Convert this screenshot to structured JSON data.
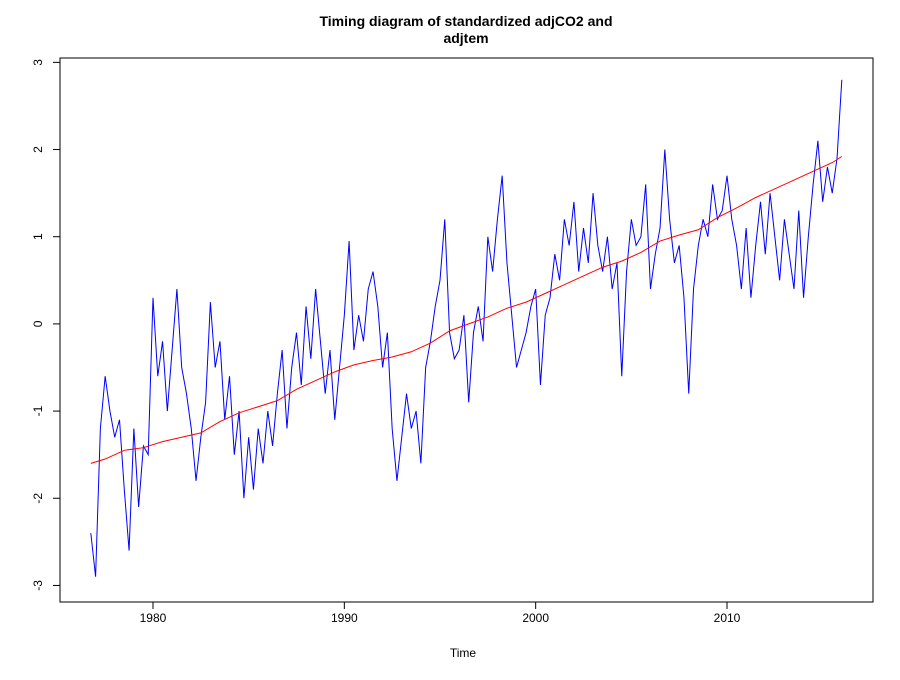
{
  "chart_data": {
    "type": "line",
    "title": [
      "Timing diagram of standardized adjCO2 and",
      "adjtem"
    ],
    "x_label": "Time",
    "xlim": [
      1975.14,
      2017.63
    ],
    "xticks": [
      1980,
      1990,
      2000,
      2010
    ],
    "ylim": [
      -3.19,
      3.05
    ],
    "yticks": [
      -3,
      -2,
      -1,
      0,
      1,
      2,
      3
    ],
    "series": [
      {
        "color": "#0000ff",
        "x": [
          1976.75,
          1977,
          1977.25,
          1977.5,
          1977.75,
          1978,
          1978.25,
          1978.5,
          1978.75,
          1979,
          1979.25,
          1979.5,
          1979.75,
          1980,
          1980.25,
          1980.5,
          1980.75,
          1981,
          1981.25,
          1981.5,
          1981.75,
          1982,
          1982.25,
          1982.5,
          1982.75,
          1983,
          1983.25,
          1983.5,
          1983.75,
          1984,
          1984.25,
          1984.5,
          1984.75,
          1985,
          1985.25,
          1985.5,
          1985.75,
          1986,
          1986.25,
          1986.5,
          1986.75,
          1987,
          1987.25,
          1987.5,
          1987.75,
          1988,
          1988.25,
          1988.5,
          1988.75,
          1989,
          1989.25,
          1989.5,
          1989.75,
          1990,
          1990.25,
          1990.5,
          1990.75,
          1991,
          1991.25,
          1991.5,
          1991.75,
          1992,
          1992.25,
          1992.5,
          1992.75,
          1993,
          1993.25,
          1993.5,
          1993.75,
          1994,
          1994.25,
          1994.5,
          1994.75,
          1995,
          1995.25,
          1995.5,
          1995.75,
          1996,
          1996.25,
          1996.5,
          1996.75,
          1997,
          1997.25,
          1997.5,
          1997.75,
          1998,
          1998.25,
          1998.5,
          1998.75,
          1999,
          1999.25,
          1999.5,
          1999.75,
          2000,
          2000.25,
          2000.5,
          2000.75,
          2001,
          2001.25,
          2001.5,
          2001.75,
          2002,
          2002.25,
          2002.5,
          2002.75,
          2003,
          2003.25,
          2003.5,
          2003.75,
          2004,
          2004.25,
          2004.5,
          2004.75,
          2005,
          2005.25,
          2005.5,
          2005.75,
          2006,
          2006.25,
          2006.5,
          2006.75,
          2007,
          2007.25,
          2007.5,
          2007.75,
          2008,
          2008.25,
          2008.5,
          2008.75,
          2009,
          2009.25,
          2009.5,
          2009.75,
          2010,
          2010.25,
          2010.5,
          2010.75,
          2011,
          2011.25,
          2011.5,
          2011.75,
          2012,
          2012.25,
          2012.5,
          2012.75,
          2013,
          2013.25,
          2013.5,
          2013.75,
          2014,
          2014.25,
          2014.5,
          2014.75,
          2015,
          2015.25,
          2015.5,
          2015.75,
          2016
        ],
        "values": [
          -2.4,
          -2.9,
          -1.2,
          -0.6,
          -1.0,
          -1.3,
          -1.1,
          -1.9,
          -2.6,
          -1.2,
          -2.1,
          -1.4,
          -1.5,
          0.3,
          -0.6,
          -0.2,
          -1.0,
          -0.3,
          0.4,
          -0.5,
          -0.8,
          -1.2,
          -1.8,
          -1.3,
          -0.9,
          0.25,
          -0.5,
          -0.2,
          -1.1,
          -0.6,
          -1.5,
          -1.0,
          -2.0,
          -1.3,
          -1.9,
          -1.2,
          -1.6,
          -1.0,
          -1.4,
          -0.8,
          -0.3,
          -1.2,
          -0.5,
          -0.1,
          -0.7,
          0.2,
          -0.4,
          0.4,
          -0.2,
          -0.8,
          -0.3,
          -1.1,
          -0.5,
          0.1,
          0.95,
          -0.3,
          0.1,
          -0.2,
          0.4,
          0.6,
          0.2,
          -0.5,
          -0.1,
          -1.2,
          -1.8,
          -1.3,
          -0.8,
          -1.2,
          -1.0,
          -1.6,
          -0.5,
          -0.2,
          0.2,
          0.5,
          1.2,
          -0.1,
          -0.4,
          -0.3,
          0.1,
          -0.9,
          -0.1,
          0.2,
          -0.2,
          1.0,
          0.6,
          1.2,
          1.7,
          0.7,
          0.1,
          -0.5,
          -0.3,
          -0.1,
          0.2,
          0.4,
          -0.7,
          0.1,
          0.3,
          0.8,
          0.5,
          1.2,
          0.9,
          1.4,
          0.6,
          1.1,
          0.7,
          1.5,
          0.9,
          0.6,
          1.0,
          0.4,
          0.7,
          -0.6,
          0.6,
          1.2,
          0.9,
          1.0,
          1.6,
          0.4,
          0.8,
          1.1,
          2.0,
          1.2,
          0.7,
          0.9,
          0.3,
          -0.8,
          0.4,
          0.9,
          1.2,
          1.0,
          1.6,
          1.2,
          1.3,
          1.7,
          1.2,
          0.9,
          0.4,
          1.1,
          0.3,
          0.9,
          1.4,
          0.8,
          1.5,
          1.0,
          0.5,
          1.2,
          0.8,
          0.4,
          1.3,
          0.3,
          1.0,
          1.6,
          2.1,
          1.4,
          1.8,
          1.5,
          1.9,
          2.8
        ]
      },
      {
        "color": "#ff0000",
        "x": [
          1976.75,
          1977.5,
          1978.5,
          1979.5,
          1980.5,
          1981.5,
          1982.5,
          1983.5,
          1984.5,
          1985.5,
          1986.5,
          1987.5,
          1988.5,
          1989.5,
          1990.5,
          1991.5,
          1992.5,
          1993.5,
          1994.5,
          1995.5,
          1996.5,
          1997.5,
          1998.5,
          1999.5,
          2000.5,
          2001.5,
          2002.5,
          2003.5,
          2004.5,
          2005.5,
          2006.5,
          2007.5,
          2008.5,
          2009.5,
          2010.5,
          2011.5,
          2012.5,
          2013.5,
          2014.5,
          2015.5,
          2016
        ],
        "values": [
          -1.6,
          -1.55,
          -1.45,
          -1.42,
          -1.35,
          -1.3,
          -1.25,
          -1.12,
          -1.02,
          -0.95,
          -0.88,
          -0.75,
          -0.65,
          -0.55,
          -0.47,
          -0.42,
          -0.38,
          -0.32,
          -0.22,
          -0.08,
          0.0,
          0.08,
          0.18,
          0.25,
          0.35,
          0.45,
          0.55,
          0.65,
          0.72,
          0.82,
          0.95,
          1.02,
          1.08,
          1.22,
          1.33,
          1.45,
          1.55,
          1.65,
          1.75,
          1.85,
          1.92
        ]
      }
    ]
  }
}
